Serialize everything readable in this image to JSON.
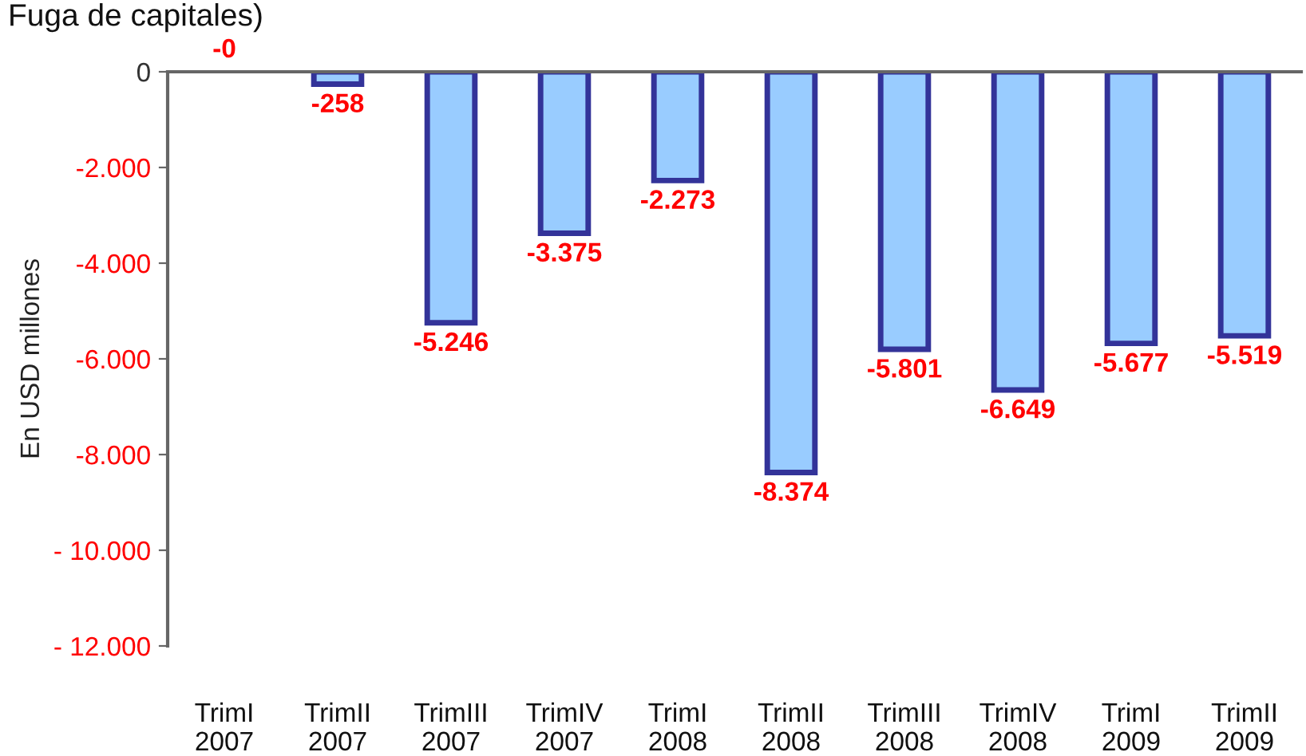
{
  "chart_data": {
    "type": "bar",
    "title": "Fuga de capitales)",
    "ylabel": "En USD millones",
    "categories": [
      "TrimI\n2007",
      "TrimII\n2007",
      "TrimIII\n2007",
      "TrimIV\n2007",
      "TrimI\n2008",
      "TrimII\n2008",
      "TrimIII\n2008",
      "TrimIV\n2008",
      "TrimI\n2009",
      "TrimII\n2009"
    ],
    "series": [
      {
        "color": "#99ccff",
        "values": [
          0,
          -258,
          -5246,
          -3375,
          -2273,
          -8374,
          -5801,
          -6649,
          -5677,
          -5519
        ],
        "value_labels": [
          "-0",
          "-258",
          "-5.246",
          "-3.375",
          "-2.273",
          "-8.374",
          "-5.801",
          "-6.649",
          "-5.677",
          "-5.519"
        ]
      }
    ],
    "ylim": [
      -12000,
      0
    ],
    "yticks": [
      0,
      {
        "value": -2000,
        "label": "-2.000"
      },
      {
        "value": -4000,
        "label": "-4.000"
      },
      {
        "value": -6000,
        "label": "-6.000"
      },
      {
        "value": -8000,
        "label": "-8.000"
      },
      {
        "value": -10000,
        "label": "- 10.000"
      },
      {
        "value": -12000,
        "label": "- 12.000"
      }
    ],
    "grid": false,
    "legend": false
  }
}
